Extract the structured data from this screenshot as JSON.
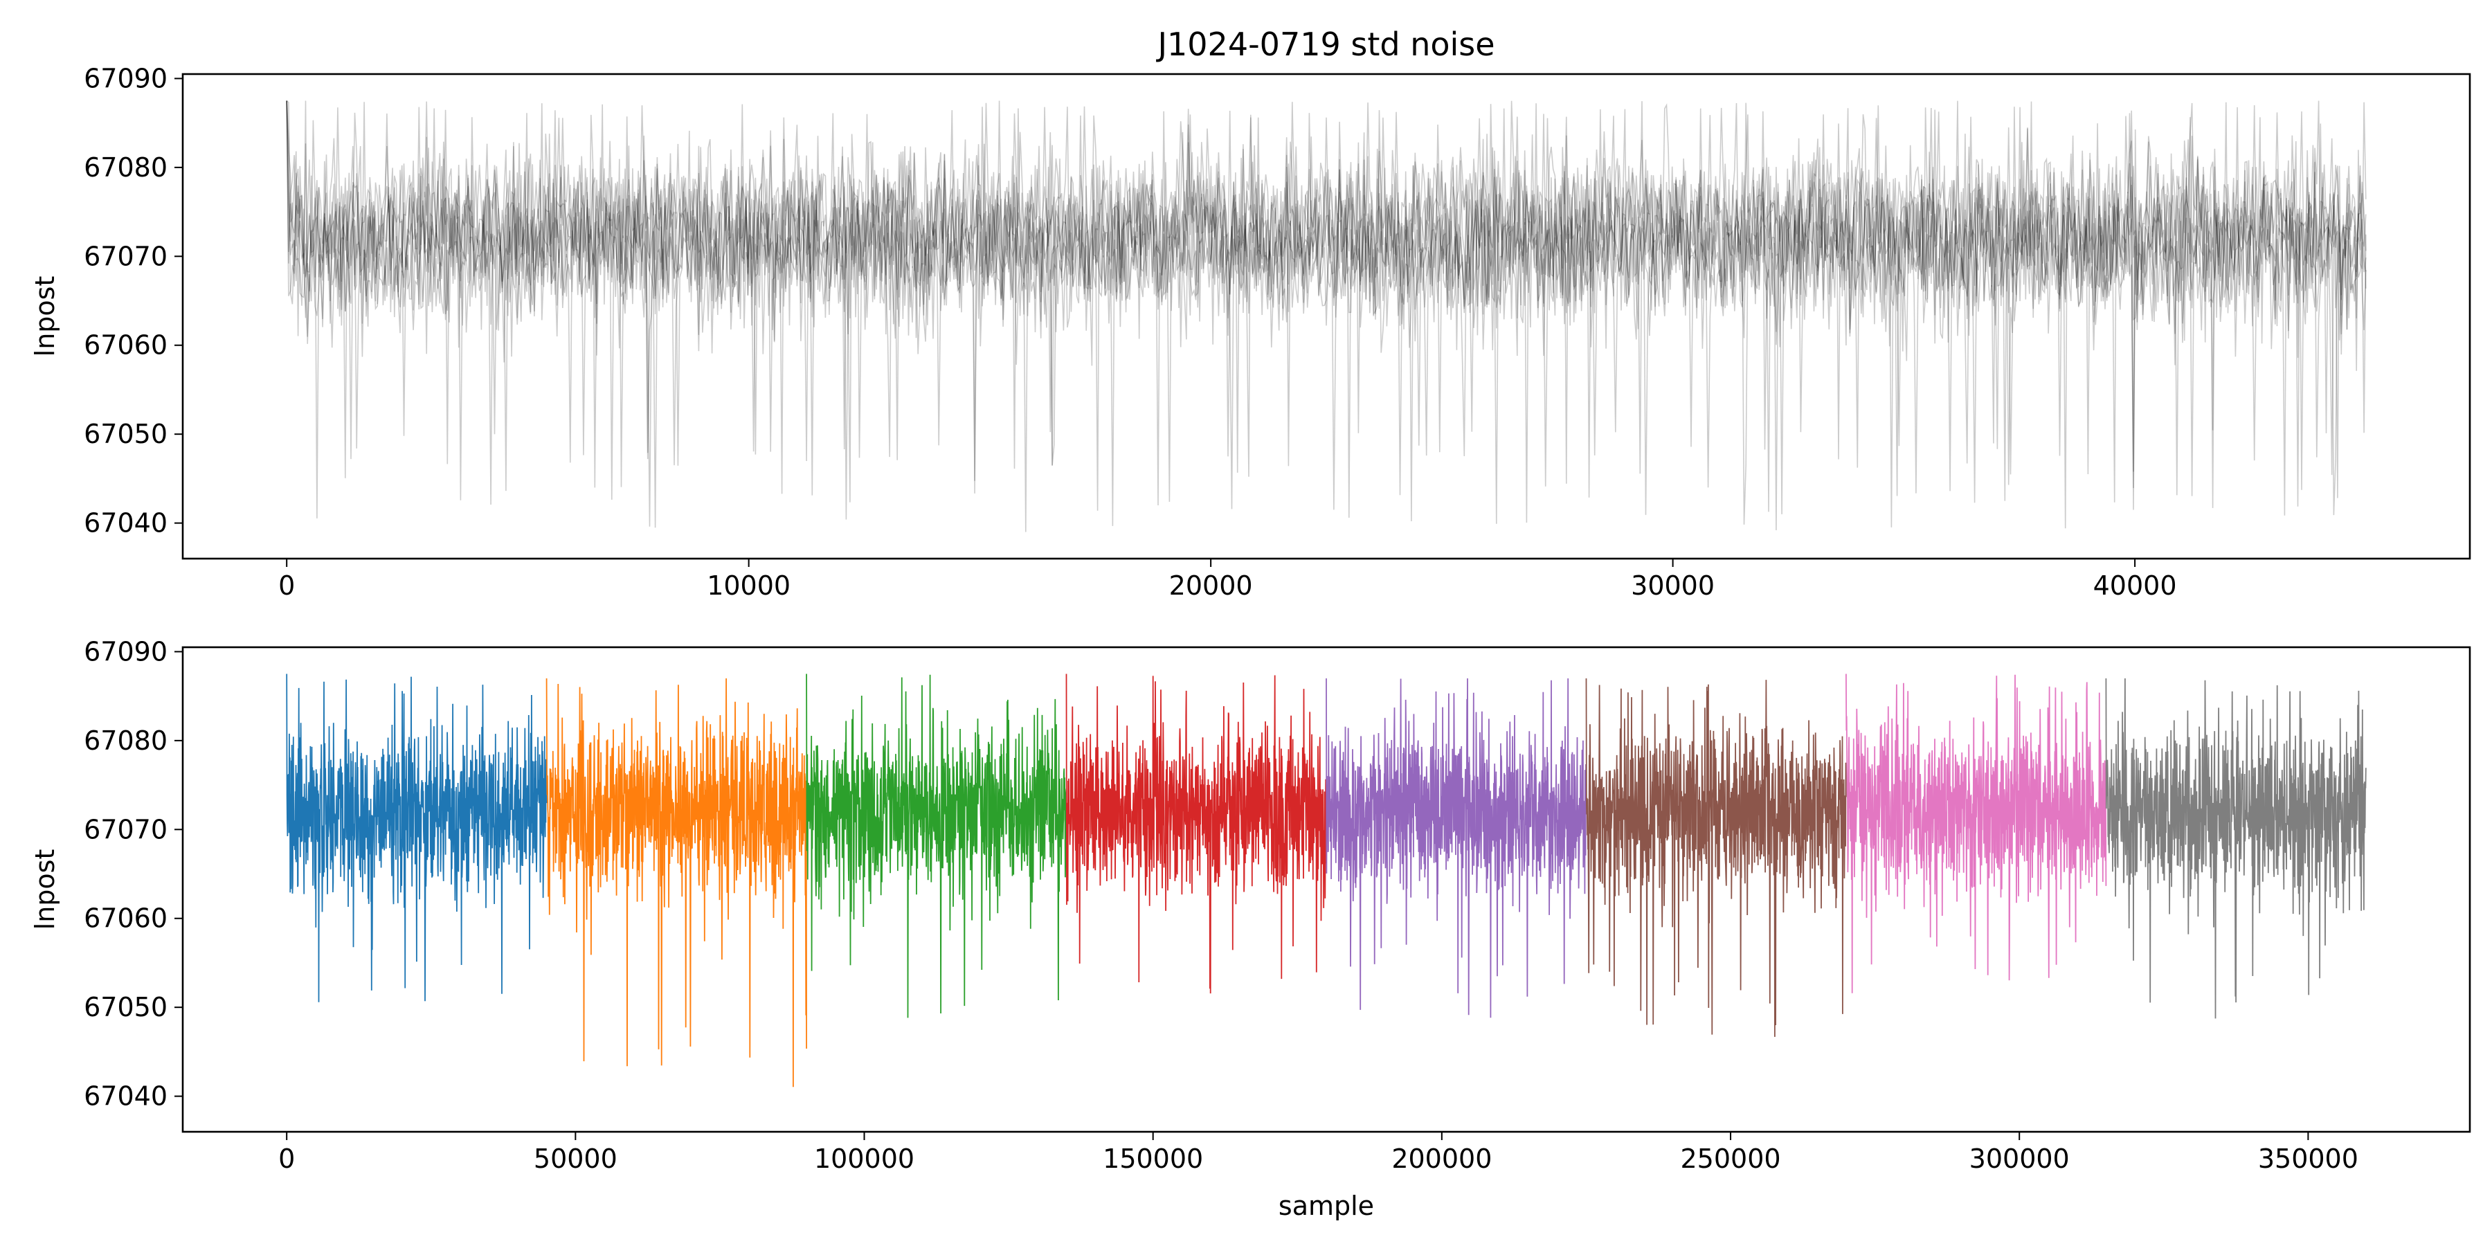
{
  "title": "J1024-0719 std noise",
  "chart_data": [
    {
      "type": "line",
      "title": "J1024-0719 std noise",
      "xlabel": "",
      "ylabel": "lnpost",
      "xlim": [
        -2250,
        47250
      ],
      "ylim": [
        67036,
        67090.5
      ],
      "xticks": [
        0,
        10000,
        20000,
        30000,
        40000
      ],
      "xtick_labels": [
        "0",
        "10000",
        "20000",
        "30000",
        "40000"
      ],
      "yticks": [
        67040,
        67050,
        67060,
        67070,
        67080,
        67090
      ],
      "ytick_labels": [
        "67040",
        "67050",
        "67060",
        "67070",
        "67080",
        "67090"
      ],
      "grid": false,
      "legend": "none",
      "series_count": 8,
      "samples_per_series": 45000,
      "overlay": true,
      "color": "#000000",
      "alpha": 0.2,
      "band": {
        "mean": 67072,
        "core_low": 67063,
        "core_high": 67082,
        "min": 67039,
        "max": 67087.5
      },
      "notable_minima": [
        {
          "x": 16000,
          "y": 67039
        },
        {
          "x": 39000,
          "y": 67045.5
        },
        {
          "x": 8400,
          "y": 67046.5
        },
        {
          "x": 31600,
          "y": 67046.5
        }
      ]
    },
    {
      "type": "line",
      "title": "",
      "xlabel": "sample",
      "ylabel": "lnpost",
      "xlim": [
        -18000,
        378000
      ],
      "ylim": [
        67036,
        67090.5
      ],
      "xticks": [
        0,
        50000,
        100000,
        150000,
        200000,
        250000,
        300000,
        350000
      ],
      "xtick_labels": [
        "0",
        "50000",
        "100000",
        "150000",
        "200000",
        "250000",
        "300000",
        "350000"
      ],
      "yticks": [
        67040,
        67050,
        67060,
        67070,
        67080,
        67090
      ],
      "ytick_labels": [
        "67040",
        "67050",
        "67060",
        "67070",
        "67080",
        "67090"
      ],
      "grid": false,
      "legend": "none",
      "series": [
        {
          "color": "#1f77b4",
          "x_range": [
            0,
            45000
          ],
          "mean": 67072,
          "core_low": 67063,
          "core_high": 67082.5,
          "min": 67050.5,
          "max": 67087.5
        },
        {
          "color": "#ff7f0e",
          "x_range": [
            45000,
            90000
          ],
          "mean": 67072,
          "core_low": 67063,
          "core_high": 67082.5,
          "min": 67039,
          "max": 67087
        },
        {
          "color": "#2ca02c",
          "x_range": [
            90000,
            135000
          ],
          "mean": 67072,
          "core_low": 67063,
          "core_high": 67082.5,
          "min": 67048.5,
          "max": 67087.5
        },
        {
          "color": "#d62728",
          "x_range": [
            135000,
            180000
          ],
          "mean": 67072,
          "core_low": 67063,
          "core_high": 67082.5,
          "min": 67051.5,
          "max": 67087.5
        },
        {
          "color": "#9467bd",
          "x_range": [
            180000,
            225000
          ],
          "mean": 67072,
          "core_low": 67063,
          "core_high": 67082.5,
          "min": 67048,
          "max": 67087
        },
        {
          "color": "#8c564b",
          "x_range": [
            225000,
            270000
          ],
          "mean": 67072,
          "core_low": 67063,
          "core_high": 67082.5,
          "min": 67046.5,
          "max": 67087
        },
        {
          "color": "#e377c2",
          "x_range": [
            270000,
            315000
          ],
          "mean": 67072,
          "core_low": 67063,
          "core_high": 67082.5,
          "min": 67051,
          "max": 67087.5
        },
        {
          "color": "#7f7f7f",
          "x_range": [
            315000,
            360000
          ],
          "mean": 67072,
          "core_low": 67063,
          "core_high": 67082.5,
          "min": 67047.5,
          "max": 67087
        }
      ]
    }
  ]
}
